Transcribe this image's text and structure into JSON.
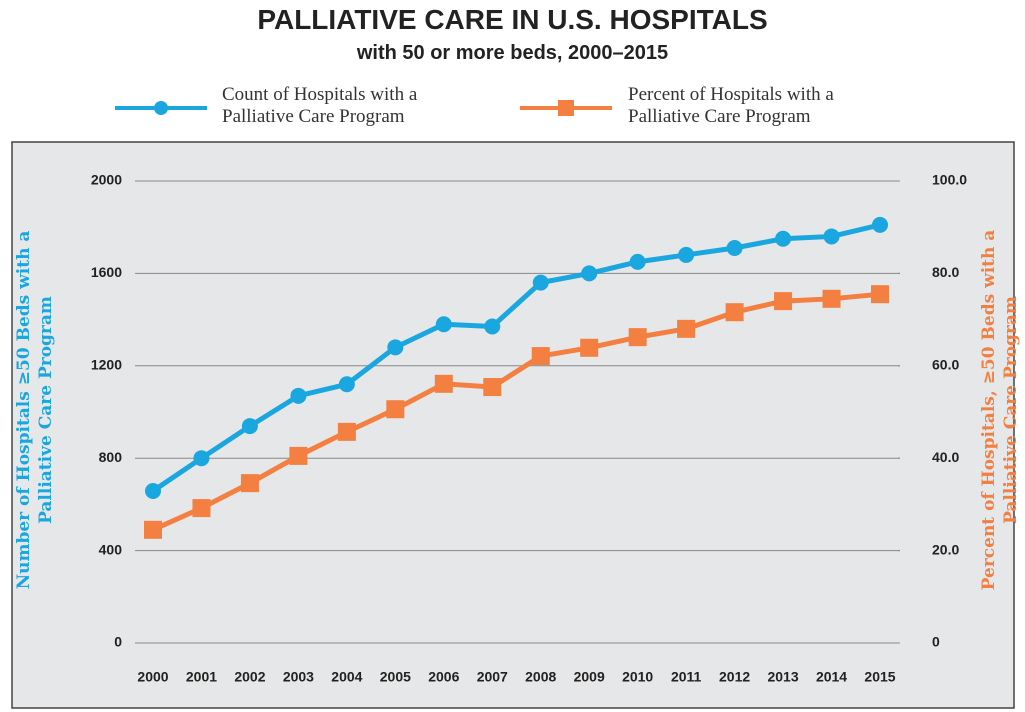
{
  "chart_data": {
    "type": "line",
    "title": "PALLIATIVE CARE IN U.S. HOSPITALS",
    "subtitle": "with 50 or more beds, 2000–2015",
    "y_label": "Number of Hospitals ≥50 Beds with a Palliative Care Program",
    "y2_label": "Percent of Hospitals, ≥50 Beds with a Palliative Care Program",
    "categories": [
      "2000",
      "2001",
      "2002",
      "2003",
      "2004",
      "2005",
      "2006",
      "2007",
      "2008",
      "2009",
      "2010",
      "2011",
      "2012",
      "2013",
      "2014",
      "2015"
    ],
    "series": [
      {
        "name": "Count of Hospitals with a Palliative Care Program",
        "color": "#1aa7e0",
        "marker": "circle",
        "values": [
          658,
          800,
          939,
          1070,
          1120,
          1280,
          1380,
          1370,
          1560,
          1600,
          1650,
          1680,
          1710,
          1750,
          1760,
          1810
        ]
      },
      {
        "name": "Percent of Hospitals with a Palliative Care Program",
        "color": "#f37f40",
        "marker": "square",
        "axis": "y2",
        "values": [
          24.5,
          29.2,
          34.6,
          40.5,
          45.7,
          50.6,
          56.1,
          55.4,
          62.1,
          63.9,
          66.2,
          68.0,
          71.6,
          74.0,
          74.5,
          75.5
        ]
      }
    ],
    "ylim": [
      0,
      2000
    ],
    "yticks": [
      0,
      400,
      800,
      1200,
      1600,
      2000
    ],
    "y2lim": [
      0,
      100
    ],
    "y2ticks": [
      0,
      {
        "value": 20,
        "label": "20.0"
      },
      {
        "value": 40,
        "label": "40.0"
      },
      {
        "value": 60,
        "label": "60.0"
      },
      {
        "value": 80,
        "label": "80.0"
      },
      {
        "value": 100,
        "label": "100.0"
      }
    ],
    "grid": true
  }
}
